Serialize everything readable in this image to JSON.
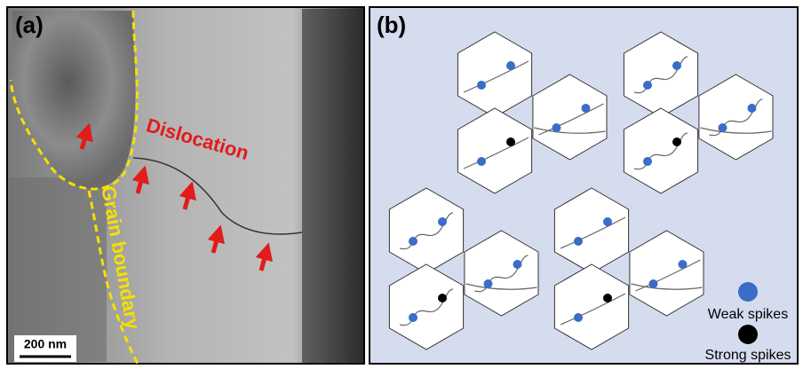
{
  "panel_a": {
    "label": "(a)",
    "dislocation_label": "Dislocation",
    "boundary_label": "Grain boundary",
    "scale_bar": "200 nm"
  },
  "panel_b": {
    "label": "(b)",
    "legend": {
      "weak": "Weak spikes",
      "strong": "Strong spikes"
    }
  }
}
